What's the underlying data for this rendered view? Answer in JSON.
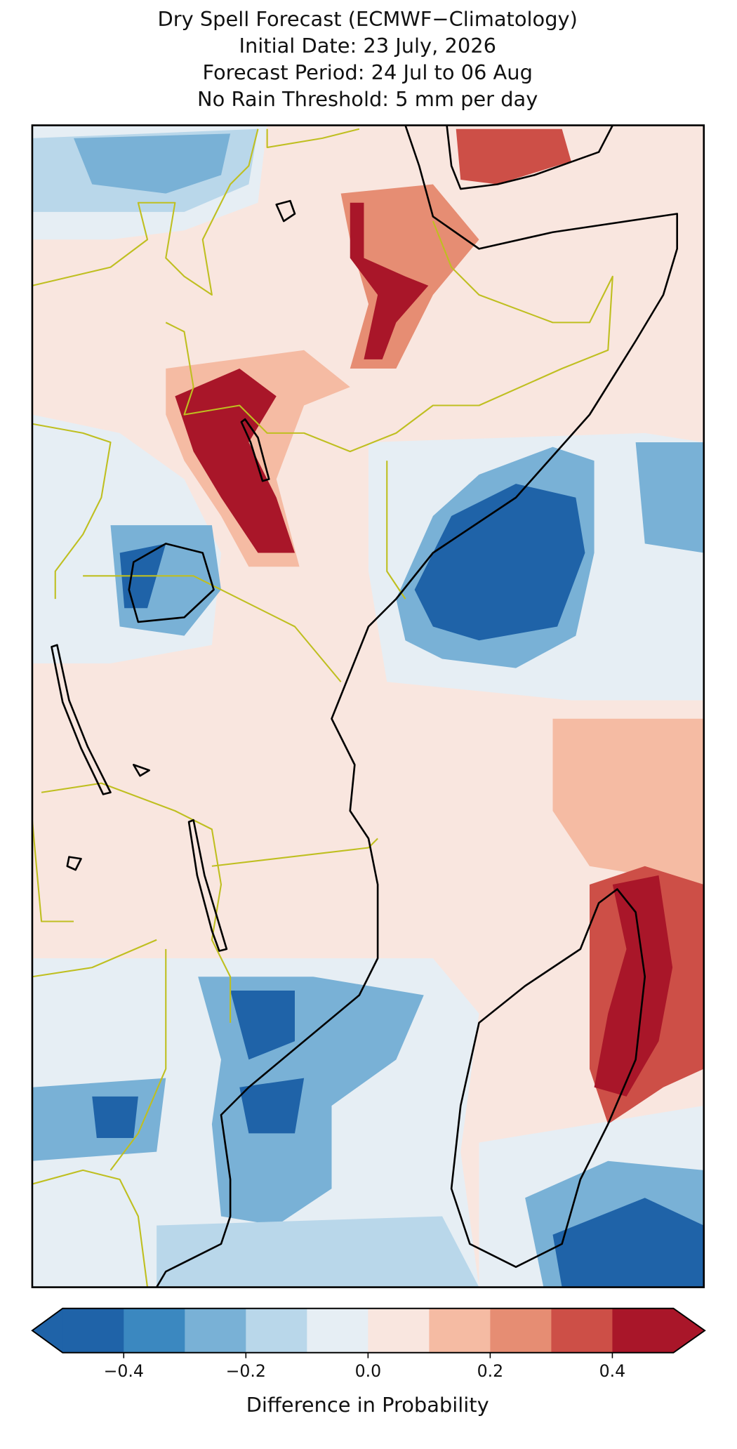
{
  "title": [
    "Dry Spell Forecast (ECMWF−Climatology)",
    "Initial Date: 23 July, 2026",
    "Forecast Period: 24 Jul to 06 Aug",
    "No Rain Threshold: 5 mm per day"
  ],
  "colorbar": {
    "label": "Difference in Probability",
    "range": [
      -0.5,
      0.5
    ],
    "ticks": [
      {
        "value": -0.4,
        "label": "−0.4"
      },
      {
        "value": -0.2,
        "label": "−0.2"
      },
      {
        "value": 0,
        "label": "0.0"
      },
      0.2,
      0.4
    ],
    "colors": [
      "#1f63a8",
      "#3b88c0",
      "#79b1d6",
      "#b9d7ea",
      "#e6eef4",
      "#f9e6df",
      "#f5bba3",
      "#e68d73",
      "#cd4f47",
      "#a91629"
    ],
    "extend": "both"
  }
}
